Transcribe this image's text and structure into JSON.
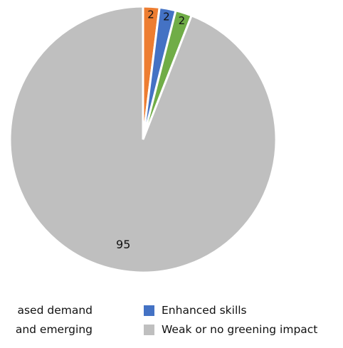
{
  "chart_data": {
    "type": "pie",
    "title": "",
    "start_angle_deg": 0,
    "slices": [
      {
        "label": "Increased demand",
        "value": 2,
        "color": "#ED7D31",
        "data_label": "2"
      },
      {
        "label": "Enhanced skills",
        "value": 2,
        "color": "#4472C4",
        "data_label": "2"
      },
      {
        "label": "New and emerging",
        "value": 2,
        "color": "#70AD47",
        "data_label": "2"
      },
      {
        "label": "Weak or no greening impact",
        "value": 95,
        "color": "#BFBFBF",
        "data_label": "95"
      }
    ],
    "legend": {
      "placement": "bottom",
      "items": [
        {
          "label": "Increased demand",
          "color": "#ED7D31",
          "visible_text": "ased demand"
        },
        {
          "label": "Enhanced skills",
          "color": "#4472C4",
          "visible_text": "Enhanced skills"
        },
        {
          "label": "New and emerging",
          "color": "#70AD47",
          "visible_text": "and emerging"
        },
        {
          "label": "Weak or no greening impact",
          "color": "#BFBFBF",
          "visible_text": "Weak or no greening impact"
        }
      ]
    }
  }
}
